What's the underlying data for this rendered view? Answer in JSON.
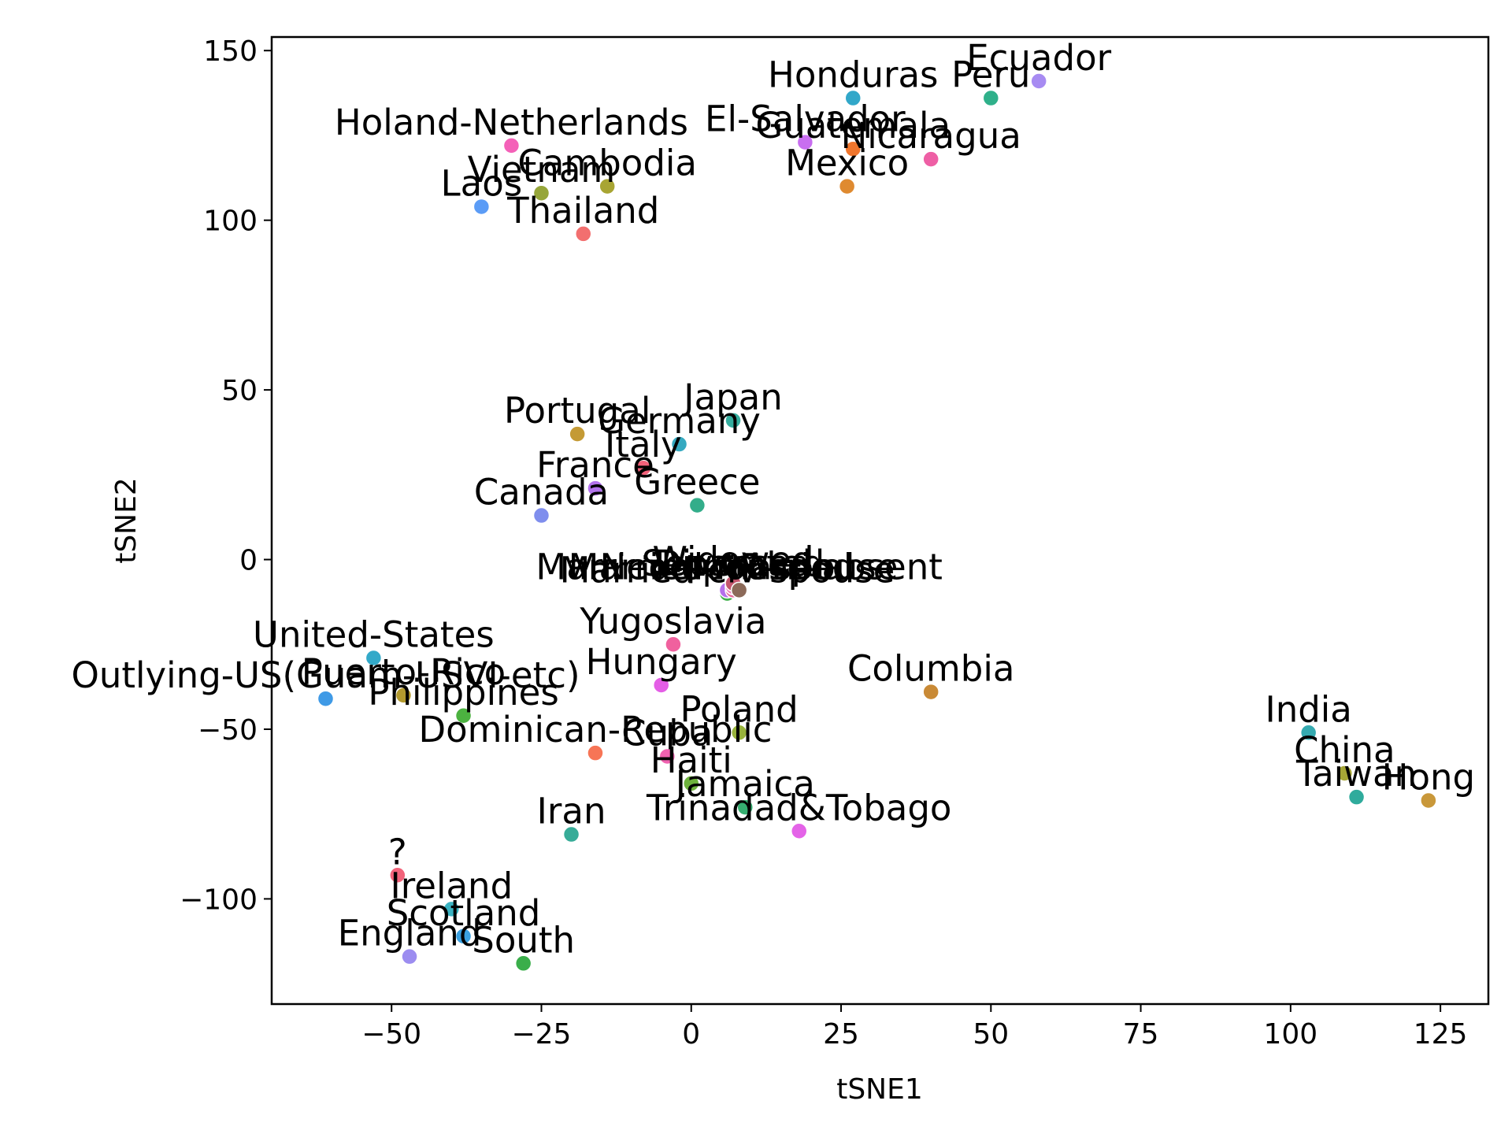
{
  "chart_data": {
    "type": "scatter",
    "title": "",
    "xlabel": "tSNE1",
    "ylabel": "tSNE2",
    "xlim": [
      -70,
      133
    ],
    "ylim": [
      -131,
      154
    ],
    "xticks": [
      -50,
      -25,
      0,
      25,
      50,
      75,
      100,
      125
    ],
    "yticks": [
      -100,
      -50,
      0,
      50,
      100,
      150
    ],
    "grid": false,
    "legend": "none",
    "points": [
      {
        "label": "Ecuador",
        "x": 58,
        "y": 141,
        "color": "#a78bf2"
      },
      {
        "label": "Honduras",
        "x": 27,
        "y": 136,
        "color": "#31a7c9"
      },
      {
        "label": "Peru",
        "x": 50,
        "y": 136,
        "color": "#2fb08a"
      },
      {
        "label": "El-Salvador",
        "x": 19,
        "y": 123,
        "color": "#c86ef0"
      },
      {
        "label": "Guatemala",
        "x": 27,
        "y": 121,
        "color": "#f0762d"
      },
      {
        "label": "Holand-Netherlands",
        "x": -30,
        "y": 122,
        "color": "#f461b8"
      },
      {
        "label": "Nicaragua",
        "x": 40,
        "y": 118,
        "color": "#ee5fa5"
      },
      {
        "label": "Cambodia",
        "x": -14,
        "y": 110,
        "color": "#a8a533"
      },
      {
        "label": "Mexico",
        "x": 26,
        "y": 110,
        "color": "#df8a30"
      },
      {
        "label": "Vietnam",
        "x": -25,
        "y": 108,
        "color": "#96a63a"
      },
      {
        "label": "Laos",
        "x": -35,
        "y": 104,
        "color": "#5b9cf6"
      },
      {
        "label": "Thailand",
        "x": -18,
        "y": 96,
        "color": "#f26f6f"
      },
      {
        "label": "Japan",
        "x": 7,
        "y": 41,
        "color": "#35ad9e"
      },
      {
        "label": "Portugal",
        "x": -19,
        "y": 37,
        "color": "#c49a35"
      },
      {
        "label": "Germany",
        "x": -2,
        "y": 34,
        "color": "#35a9c0"
      },
      {
        "label": "Italy",
        "x": -8,
        "y": 27,
        "color": "#f2617a"
      },
      {
        "label": "France",
        "x": -16,
        "y": 21,
        "color": "#b373ec"
      },
      {
        "label": "Greece",
        "x": 1,
        "y": 16,
        "color": "#33ad8a"
      },
      {
        "label": "Canada",
        "x": -25,
        "y": 13,
        "color": "#7f8eed"
      },
      {
        "label": "Married-civ-spouse",
        "x": 6,
        "y": -10,
        "color": "#3fb04a"
      },
      {
        "label": "Never-married",
        "x": 6,
        "y": -9,
        "color": "#b56fea"
      },
      {
        "label": "Married-AF-spouse",
        "x": 7,
        "y": -9,
        "color": "#e56a9c"
      },
      {
        "label": "Divorced",
        "x": 7,
        "y": -8,
        "color": "#a9703f"
      },
      {
        "label": "Separated",
        "x": 7,
        "y": -8,
        "color": "#ee82bd"
      },
      {
        "label": "Widowed",
        "x": 7,
        "y": -7,
        "color": "#c4566d"
      },
      {
        "label": "Married-spouse-absent",
        "x": 8,
        "y": -9,
        "color": "#8c6a59"
      },
      {
        "label": "Yugoslavia",
        "x": -3,
        "y": -25,
        "color": "#f0619e"
      },
      {
        "label": "United-States",
        "x": -53,
        "y": -29,
        "color": "#33a9c9"
      },
      {
        "label": "Hungary",
        "x": -5,
        "y": -37,
        "color": "#e45ee6"
      },
      {
        "label": "Columbia",
        "x": 40,
        "y": -39,
        "color": "#c98a36"
      },
      {
        "label": "Puerto-Rico",
        "x": -48,
        "y": -40,
        "color": "#b39a2e"
      },
      {
        "label": "Outlying-US(Guam-USVI-etc)",
        "x": -61,
        "y": -41,
        "color": "#3f9ae6"
      },
      {
        "label": "Philippines",
        "x": -38,
        "y": -46,
        "color": "#4cb240"
      },
      {
        "label": "India",
        "x": 103,
        "y": -51,
        "color": "#35aab0"
      },
      {
        "label": "Poland",
        "x": 8,
        "y": -51,
        "color": "#98b33b"
      },
      {
        "label": "Dominican-Republic",
        "x": -16,
        "y": -57,
        "color": "#f77556"
      },
      {
        "label": "Cuba",
        "x": -4,
        "y": -58,
        "color": "#f062b0"
      },
      {
        "label": "China",
        "x": 109,
        "y": -63,
        "color": "#a6a636"
      },
      {
        "label": "Haiti",
        "x": 0,
        "y": -66,
        "color": "#6db13c"
      },
      {
        "label": "Taiwan",
        "x": 111,
        "y": -70,
        "color": "#2fab9c"
      },
      {
        "label": "Hong",
        "x": 123,
        "y": -71,
        "color": "#c9983a"
      },
      {
        "label": "Jamaica",
        "x": 9,
        "y": -73,
        "color": "#35ae70"
      },
      {
        "label": "Trinadad&Tobago",
        "x": 18,
        "y": -80,
        "color": "#e463e8"
      },
      {
        "label": "Iran",
        "x": -20,
        "y": -81,
        "color": "#37ac98"
      },
      {
        "label": "?",
        "x": -49,
        "y": -93,
        "color": "#f2637a"
      },
      {
        "label": "Ireland",
        "x": -40,
        "y": -103,
        "color": "#3bb3c2"
      },
      {
        "label": "Scotland",
        "x": -38,
        "y": -111,
        "color": "#3aa0e0"
      },
      {
        "label": "England",
        "x": -47,
        "y": -117,
        "color": "#9c8df0"
      },
      {
        "label": "South",
        "x": -28,
        "y": -119,
        "color": "#3aae4a"
      }
    ]
  }
}
